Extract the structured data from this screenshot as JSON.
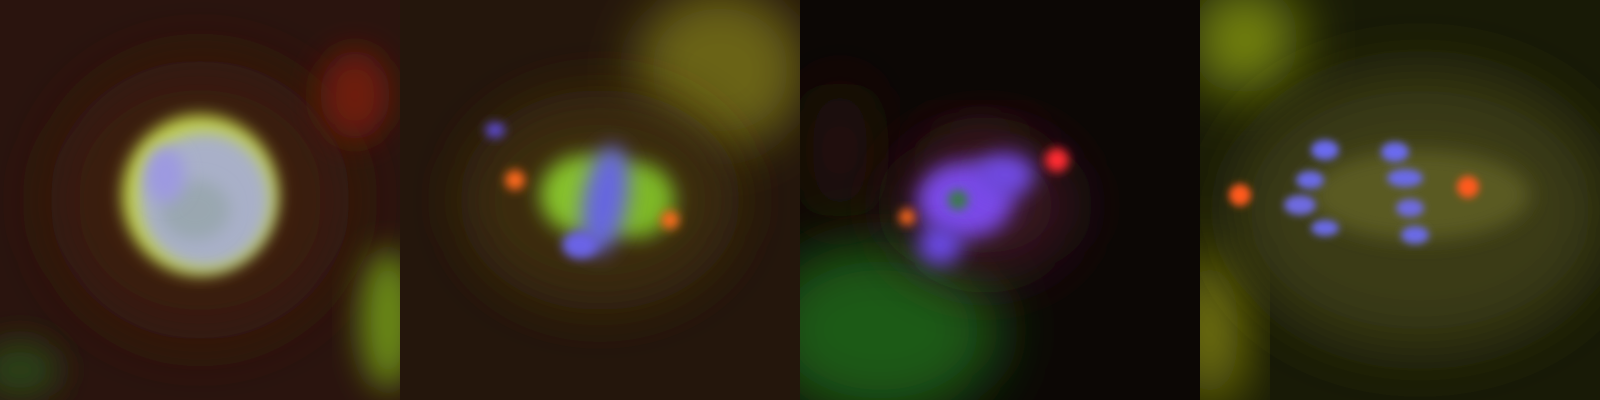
{
  "figure": {
    "panels": [
      {
        "name": "panel-1",
        "background": "#2a140e"
      },
      {
        "name": "panel-2",
        "background": "#24160c"
      },
      {
        "name": "panel-3",
        "background": "#0c0705"
      },
      {
        "name": "panel-4",
        "background": "#181a06"
      }
    ],
    "colors": {
      "dna": "#6f6bf0",
      "tubulin": "#9acc2a",
      "centrosome": "#ff4a1a",
      "haze_yellow": "#8a8a10",
      "haze_green": "#1f5a12"
    }
  }
}
